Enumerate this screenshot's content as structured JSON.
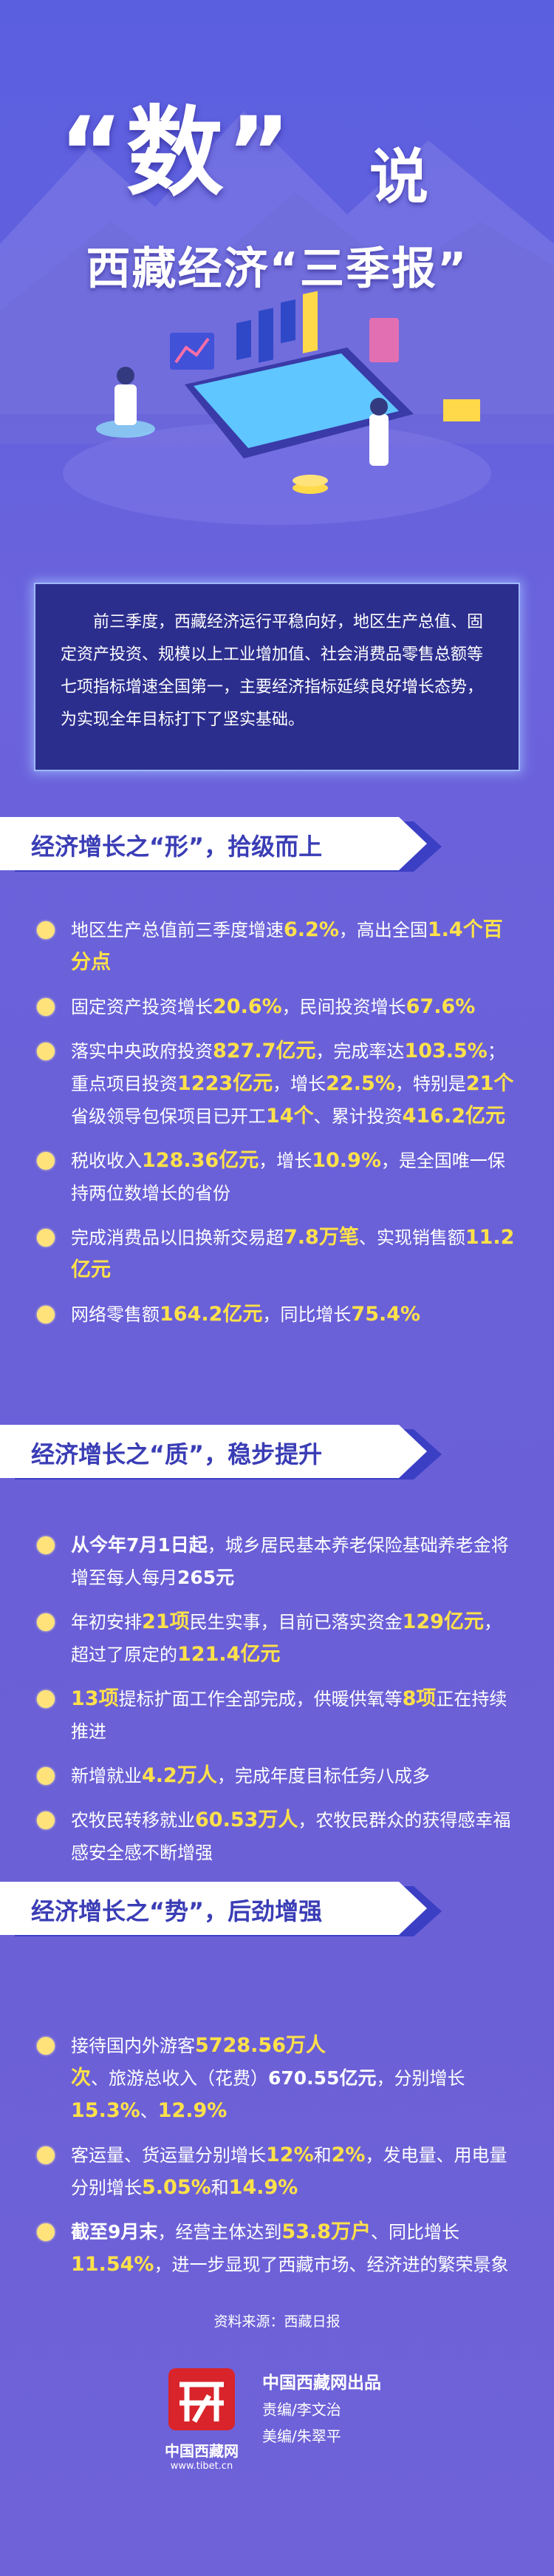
{
  "header": {
    "title_main": "“数”",
    "title_side": "说",
    "subtitle": "西藏经济“三季报”"
  },
  "intro": "前三季度，西藏经济运行平稳向好，地区生产总值、固定资产投资、规模以上工业增加值、社会消费品零售总额等七项指标增速全国第一，主要经济指标延续良好增长态势，为实现全年目标打下了坚实基础。",
  "sections": [
    {
      "title": "经济增长之“形”，拾级而上",
      "items": [
        {
          "parts": [
            {
              "text": "地区生产总值前三季度增速"
            },
            {
              "text": "6.2%",
              "style": "yellow"
            },
            {
              "text": "，高出全国"
            },
            {
              "text": "1.4个百分点",
              "style": "yellow"
            }
          ]
        },
        {
          "parts": [
            {
              "text": "固定资产投资增长"
            },
            {
              "text": "20.6%",
              "style": "yellow"
            },
            {
              "text": "，民间投资增长"
            },
            {
              "text": "67.6%",
              "style": "yellow"
            }
          ]
        },
        {
          "parts": [
            {
              "text": "落实中央政府投资"
            },
            {
              "text": "827.7亿元",
              "style": "yellow"
            },
            {
              "text": "，完成率达"
            },
            {
              "text": "103.5%",
              "style": "yellow"
            },
            {
              "text": "；重点项目投资"
            },
            {
              "text": "1223亿元",
              "style": "yellow"
            },
            {
              "text": "，增长"
            },
            {
              "text": "22.5%",
              "style": "yellow"
            },
            {
              "text": "，特别是"
            },
            {
              "text": "21个",
              "style": "yellow"
            },
            {
              "text": "省级领导包保项目已开工"
            },
            {
              "text": "14个",
              "style": "yellow"
            },
            {
              "text": "、累计投资"
            },
            {
              "text": "416.2亿元",
              "style": "yellow"
            }
          ]
        },
        {
          "parts": [
            {
              "text": "税收收入"
            },
            {
              "text": "128.36亿元",
              "style": "yellow"
            },
            {
              "text": "，增长"
            },
            {
              "text": "10.9%",
              "style": "yellow"
            },
            {
              "text": "，是全国唯一保持两位数增长的省份"
            }
          ]
        },
        {
          "parts": [
            {
              "text": "完成消费品以旧换新交易超"
            },
            {
              "text": "7.8万笔",
              "style": "yellow"
            },
            {
              "text": "、实现销售额"
            },
            {
              "text": "11.2亿元",
              "style": "yellow"
            }
          ]
        },
        {
          "parts": [
            {
              "text": "网络零售额"
            },
            {
              "text": "164.2亿元",
              "style": "yellow"
            },
            {
              "text": "，同比增长"
            },
            {
              "text": "75.4%",
              "style": "yellow"
            }
          ]
        }
      ]
    },
    {
      "title": "经济增长之“质”，稳步提升",
      "items": [
        {
          "parts": [
            {
              "text": "从今年7月1日起",
              "style": "bold"
            },
            {
              "text": "，城乡居民基本养老保险基础养老金将增至每人每月"
            },
            {
              "text": "265元",
              "style": "bold"
            }
          ]
        },
        {
          "parts": [
            {
              "text": "年初安排"
            },
            {
              "text": "21项",
              "style": "yellow"
            },
            {
              "text": "民生实事，目前已落实资金"
            },
            {
              "text": "129亿元",
              "style": "yellow"
            },
            {
              "text": "，超过了原定的"
            },
            {
              "text": "121.4亿元",
              "style": "yellow"
            }
          ]
        },
        {
          "parts": [
            {
              "text": "13项",
              "style": "yellow"
            },
            {
              "text": "提标扩面工作全部完成，供暖供氧等"
            },
            {
              "text": "8项",
              "style": "yellow"
            },
            {
              "text": "正在持续推进"
            }
          ]
        },
        {
          "parts": [
            {
              "text": "新增就业"
            },
            {
              "text": "4.2万人",
              "style": "yellow"
            },
            {
              "text": "，完成年度目标任务八成多"
            }
          ]
        },
        {
          "parts": [
            {
              "text": "农牧民转移就业"
            },
            {
              "text": "60.53万人",
              "style": "yellow"
            },
            {
              "text": "，农牧民群众的获得感幸福感安全感不断增强"
            }
          ]
        }
      ]
    },
    {
      "title": "经济增长之“势”，后劲增强",
      "items": [
        {
          "parts": [
            {
              "text": "接待国内外游客"
            },
            {
              "text": "5728.56万人次",
              "style": "yellow"
            },
            {
              "text": "、旅游总收入（花费）"
            },
            {
              "text": "670.55亿元",
              "style": "bold"
            },
            {
              "text": "，分别增长"
            },
            {
              "text": "15.3%",
              "style": "yellow"
            },
            {
              "text": "、"
            },
            {
              "text": "12.9%",
              "style": "yellow"
            }
          ]
        },
        {
          "parts": [
            {
              "text": "客运量、货运量分别增长"
            },
            {
              "text": "12%",
              "style": "yellow"
            },
            {
              "text": "和"
            },
            {
              "text": "2%",
              "style": "yellow"
            },
            {
              "text": "，发电量、用电量分别增长"
            },
            {
              "text": "5.05%",
              "style": "yellow"
            },
            {
              "text": "和"
            },
            {
              "text": "14.9%",
              "style": "yellow"
            }
          ]
        },
        {
          "parts": [
            {
              "text": "截至9月末",
              "style": "bold"
            },
            {
              "text": "，经营主体达到"
            },
            {
              "text": "53.8万户",
              "style": "yellow"
            },
            {
              "text": "、同比增长"
            },
            {
              "text": "11.54%",
              "style": "yellow"
            },
            {
              "text": "，进一步显现了西藏市场、经济进的繁荣景象"
            }
          ]
        }
      ]
    }
  ],
  "source": "资料来源：西藏日报",
  "footer": {
    "logo_name": "中国西藏网",
    "logo_url": "www.tibet.cn",
    "producer": "中国西藏网出品",
    "editor": "责编/李文治",
    "designer": "美编/朱翠平"
  }
}
